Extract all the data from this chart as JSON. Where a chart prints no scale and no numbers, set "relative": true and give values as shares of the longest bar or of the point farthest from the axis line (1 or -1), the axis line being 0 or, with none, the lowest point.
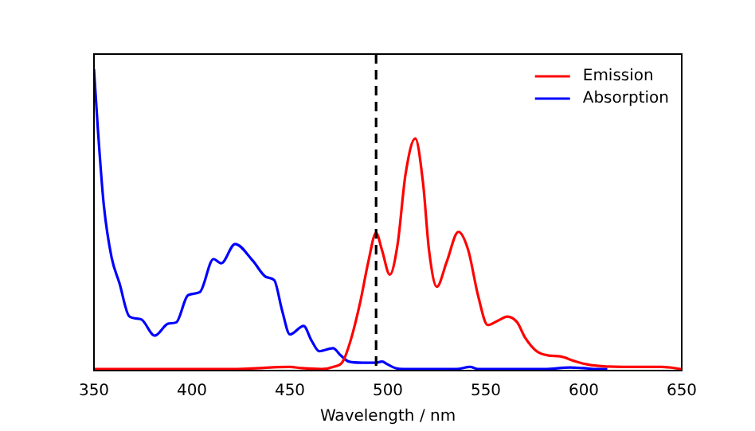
{
  "chart_data": {
    "type": "line",
    "xlabel": "Wavelength / nm",
    "relative": true,
    "xlim": [
      350,
      650
    ],
    "xticks": [
      350,
      400,
      450,
      500,
      550,
      600,
      650
    ],
    "tick_labels": "x",
    "grid": false,
    "legend": "top right",
    "marker": "none",
    "line_style": "solid",
    "series": [
      {
        "name": "Emission",
        "color": "#ff0000",
        "x": [
          350,
          380,
          420,
          450,
          456,
          466,
          472,
          477,
          481,
          486,
          490,
          494,
          497,
          501,
          505,
          509,
          514,
          518,
          521,
          525,
          530,
          536,
          541,
          546,
          551,
          556,
          561,
          566,
          570,
          576,
          582,
          588,
          595,
          602,
          610,
          620,
          630,
          640,
          650
        ],
        "values": [
          0.005,
          0.005,
          0.005,
          0.012,
          0.008,
          0.005,
          0.012,
          0.03,
          0.1,
          0.23,
          0.36,
          0.457,
          0.4,
          0.318,
          0.42,
          0.65,
          0.77,
          0.62,
          0.4,
          0.278,
          0.36,
          0.46,
          0.4,
          0.25,
          0.151,
          0.165,
          0.179,
          0.16,
          0.11,
          0.064,
          0.05,
          0.047,
          0.032,
          0.02,
          0.014,
          0.012,
          0.012,
          0.012,
          0.005
        ]
      },
      {
        "name": "Absorption",
        "color": "#0000ff",
        "x": [
          350,
          352,
          355,
          359,
          363,
          368,
          374,
          381,
          388,
          392,
          398,
          404,
          411,
          415,
          422,
          431,
          438,
          442,
          446,
          450,
          457,
          461,
          465,
          472,
          476,
          480,
          487,
          494,
          497,
          500,
          504,
          508,
          520,
          535,
          542,
          546,
          550,
          562,
          580,
          593,
          600,
          607,
          612
        ],
        "values": [
          1.0,
          0.8,
          0.55,
          0.375,
          0.29,
          0.18,
          0.17,
          0.116,
          0.156,
          0.16,
          0.25,
          0.26,
          0.37,
          0.356,
          0.42,
          0.365,
          0.31,
          0.3,
          0.2,
          0.12,
          0.148,
          0.1,
          0.064,
          0.074,
          0.05,
          0.03,
          0.026,
          0.026,
          0.03,
          0.02,
          0.008,
          0.005,
          0.005,
          0.005,
          0.012,
          0.005,
          0.005,
          0.005,
          0.005,
          0.01,
          0.008,
          0.005,
          0.005
        ]
      }
    ],
    "ref_lines": [
      {
        "axis": "x",
        "value": 494,
        "color": "#000000",
        "line_style": "dashed"
      }
    ]
  }
}
